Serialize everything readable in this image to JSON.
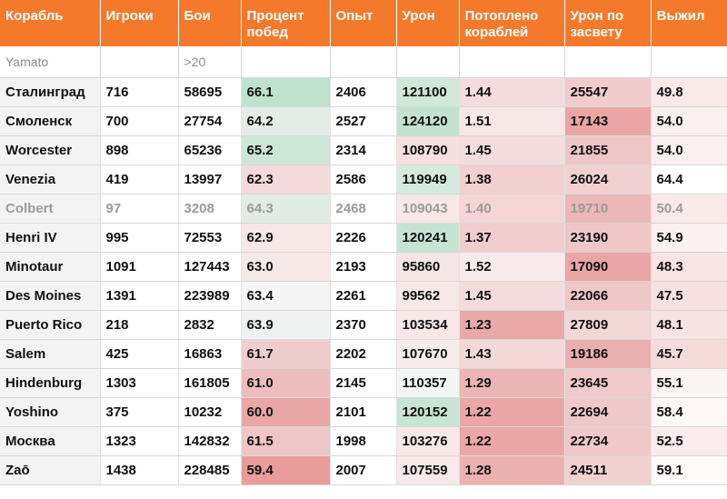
{
  "headers": [
    "Корабль",
    "Игроки",
    "Бои",
    "Процент побед",
    "Опыт",
    "Урон",
    "Потоплено кораблей",
    "Урон по засвету",
    "Выжил"
  ],
  "filters": [
    "Yamato",
    "",
    ">20",
    "",
    "",
    "",
    "",
    "",
    ""
  ],
  "rows": [
    {
      "cells": [
        "Сталинград",
        "716",
        "58695",
        "66.1",
        "2406",
        "121100",
        "1.44",
        "25547",
        "49.8"
      ],
      "bg": [
        "",
        "",
        "",
        "#bfe2cf",
        "",
        "#cfe8d9",
        "#f5dcdc",
        "#f0cccc",
        "#fae9e9"
      ],
      "dim": false
    },
    {
      "cells": [
        "Смоленск",
        "700",
        "27754",
        "64.2",
        "2527",
        "124120",
        "1.51",
        "17143",
        "54.0"
      ],
      "bg": [
        "",
        "",
        "",
        "#e4ece8",
        "",
        "#c3e3d0",
        "#f7e7e7",
        "#eaa5a5",
        "#fbf0f0"
      ],
      "dim": false
    },
    {
      "cells": [
        "Worcester",
        "898",
        "65236",
        "65.2",
        "2314",
        "108790",
        "1.45",
        "21855",
        "54.0"
      ],
      "bg": [
        "",
        "",
        "",
        "#cde6d8",
        "",
        "#f5dfdf",
        "#f5dcdc",
        "#efc6c6",
        "#fbf0f0"
      ],
      "dim": false
    },
    {
      "cells": [
        "Venezia",
        "419",
        "13997",
        "62.3",
        "2586",
        "119949",
        "1.38",
        "26024",
        "64.4"
      ],
      "bg": [
        "",
        "",
        "",
        "#f4dada",
        "",
        "#d5eadf",
        "#f2d0d0",
        "#f0d0d0",
        "#ffffff"
      ],
      "dim": false
    },
    {
      "cells": [
        "Colbert",
        "97",
        "3208",
        "64.3",
        "2468",
        "109043",
        "1.40",
        "19710",
        "50.4"
      ],
      "bg": [
        "",
        "",
        "",
        "#e2ece6",
        "",
        "#f7e7e7",
        "#f3d5d5",
        "#edb7b7",
        "#f9e9e9"
      ],
      "dim": true
    },
    {
      "cells": [
        "Henri IV",
        "995",
        "72553",
        "62.9",
        "2226",
        "120241",
        "1.37",
        "23190",
        "54.9"
      ],
      "bg": [
        "",
        "",
        "",
        "#f7e7e7",
        "",
        "#c6e4d2",
        "#f1cdcd",
        "#f0c6c6",
        "#fbf1f1"
      ],
      "dim": false
    },
    {
      "cells": [
        "Minotaur",
        "1091",
        "127443",
        "63.0",
        "2193",
        "95860",
        "1.52",
        "17090",
        "48.3"
      ],
      "bg": [
        "",
        "",
        "",
        "#f7e8e8",
        "",
        "#f6e5e5",
        "#f8eaea",
        "#eaa5a5",
        "#f8e4e4"
      ],
      "dim": false
    },
    {
      "cells": [
        "Des Moines",
        "1391",
        "223989",
        "63.4",
        "2261",
        "99562",
        "1.45",
        "22066",
        "47.5"
      ],
      "bg": [
        "",
        "",
        "",
        "#f5f5f5",
        "",
        "#f7e8e8",
        "#f5dcdc",
        "#efc7c7",
        "#f7e1e1"
      ],
      "dim": false
    },
    {
      "cells": [
        "Puerto Rico",
        "218",
        "2832",
        "63.9",
        "2370",
        "103534",
        "1.23",
        "27809",
        "48.1"
      ],
      "bg": [
        "",
        "",
        "",
        "#f0f2f1",
        "",
        "#f7e7e7",
        "#eaa9a9",
        "#f2d7d7",
        "#f8e3e3"
      ],
      "dim": false
    },
    {
      "cells": [
        "Salem",
        "425",
        "16863",
        "61.7",
        "2202",
        "107670",
        "1.43",
        "19186",
        "45.7"
      ],
      "bg": [
        "",
        "",
        "",
        "#f0cdcd",
        "",
        "#f8ebeb",
        "#f4d8d8",
        "#ebaeae",
        "#f6dbdb"
      ],
      "dim": false
    },
    {
      "cells": [
        "Hindenburg",
        "1303",
        "161805",
        "61.0",
        "2145",
        "110357",
        "1.29",
        "23645",
        "55.1"
      ],
      "bg": [
        "",
        "",
        "",
        "#edbdbd",
        "",
        "#f4f6f5",
        "#ecb5b5",
        "#f0caca",
        "#fcf3f3"
      ],
      "dim": false
    },
    {
      "cells": [
        "Yoshino",
        "375",
        "10232",
        "60.0",
        "2101",
        "120152",
        "1.22",
        "22694",
        "58.4"
      ],
      "bg": [
        "",
        "",
        "",
        "#e9a6a6",
        "",
        "#c8e4d4",
        "#eaa7a7",
        "#efc8c8",
        "#fdf7f7"
      ],
      "dim": false
    },
    {
      "cells": [
        "Москва",
        "1323",
        "142832",
        "61.5",
        "1998",
        "103276",
        "1.22",
        "22734",
        "52.5"
      ],
      "bg": [
        "",
        "",
        "",
        "#eec6c6",
        "",
        "#f7e8e8",
        "#eaa7a7",
        "#efc8c8",
        "#faecec"
      ],
      "dim": false
    },
    {
      "cells": [
        "Zaō",
        "1438",
        "228485",
        "59.4",
        "2007",
        "107559",
        "1.28",
        "24511",
        "59.1"
      ],
      "bg": [
        "",
        "",
        "",
        "#e89c9c",
        "",
        "#f7e9e9",
        "#ebb1b1",
        "#f1d0d0",
        "#fefafa"
      ],
      "dim": false
    }
  ]
}
